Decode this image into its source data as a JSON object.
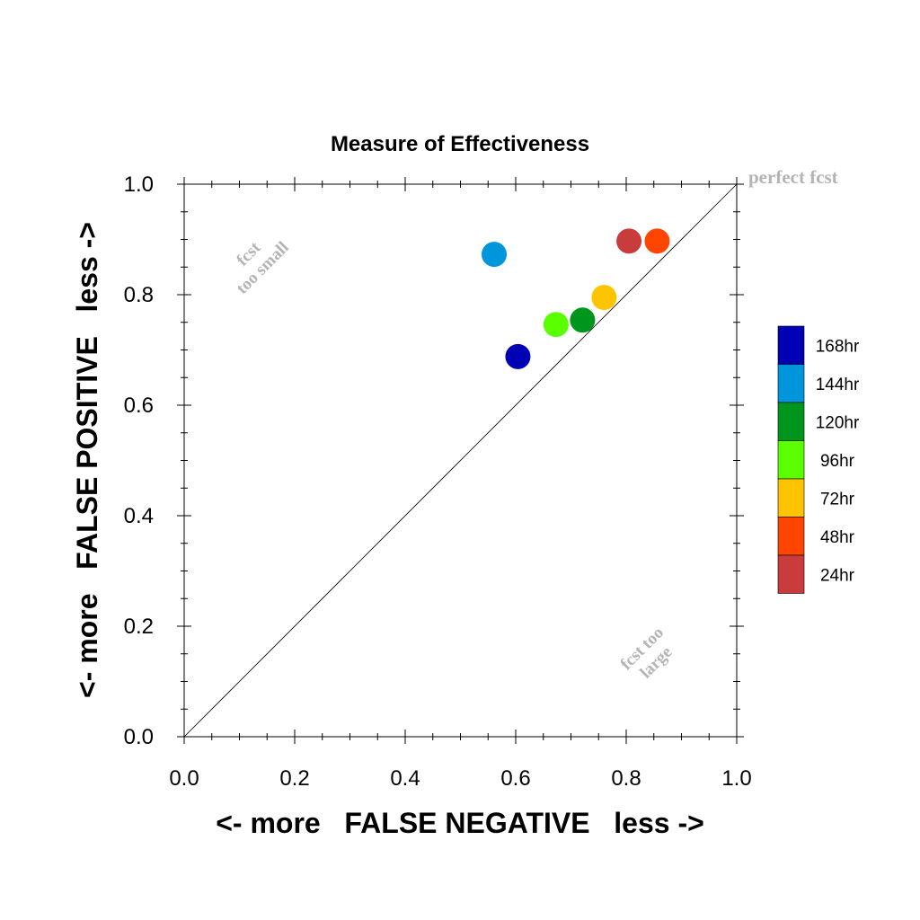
{
  "chart_data": {
    "type": "scatter",
    "title": "Measure of Effectiveness",
    "xlabel": "<- more   FALSE NEGATIVE   less ->",
    "ylabel": "<- more   FALSE POSITIVE   less ->",
    "xlim": [
      0.0,
      1.0
    ],
    "ylim": [
      0.0,
      1.0
    ],
    "x_ticks": [
      "0.0",
      "0.2",
      "0.4",
      "0.6",
      "0.8",
      "1.0"
    ],
    "y_ticks": [
      "0.0",
      "0.2",
      "0.4",
      "0.6",
      "0.8",
      "1.0"
    ],
    "grid": false,
    "diagonal_line": true,
    "annotations": {
      "perfect": "perfect fcst",
      "too_small_line1": "fcst",
      "too_small_line2": "too small",
      "too_large_line1": "fcst too",
      "too_large_line2": "large"
    },
    "legend_position": "right",
    "points": [
      {
        "label": "168hr",
        "x": 0.604,
        "y": 0.688,
        "color": "#0000b4"
      },
      {
        "label": "144hr",
        "x": 0.561,
        "y": 0.873,
        "color": "#0096dc"
      },
      {
        "label": "120hr",
        "x": 0.721,
        "y": 0.754,
        "color": "#00961e"
      },
      {
        "label": "96hr",
        "x": 0.673,
        "y": 0.746,
        "color": "#5aff00"
      },
      {
        "label": "72hr",
        "x": 0.76,
        "y": 0.795,
        "color": "#ffc400"
      },
      {
        "label": "48hr",
        "x": 0.856,
        "y": 0.897,
        "color": "#ff4500"
      },
      {
        "label": "24hr",
        "x": 0.805,
        "y": 0.897,
        "color": "#c83c3c"
      }
    ]
  }
}
